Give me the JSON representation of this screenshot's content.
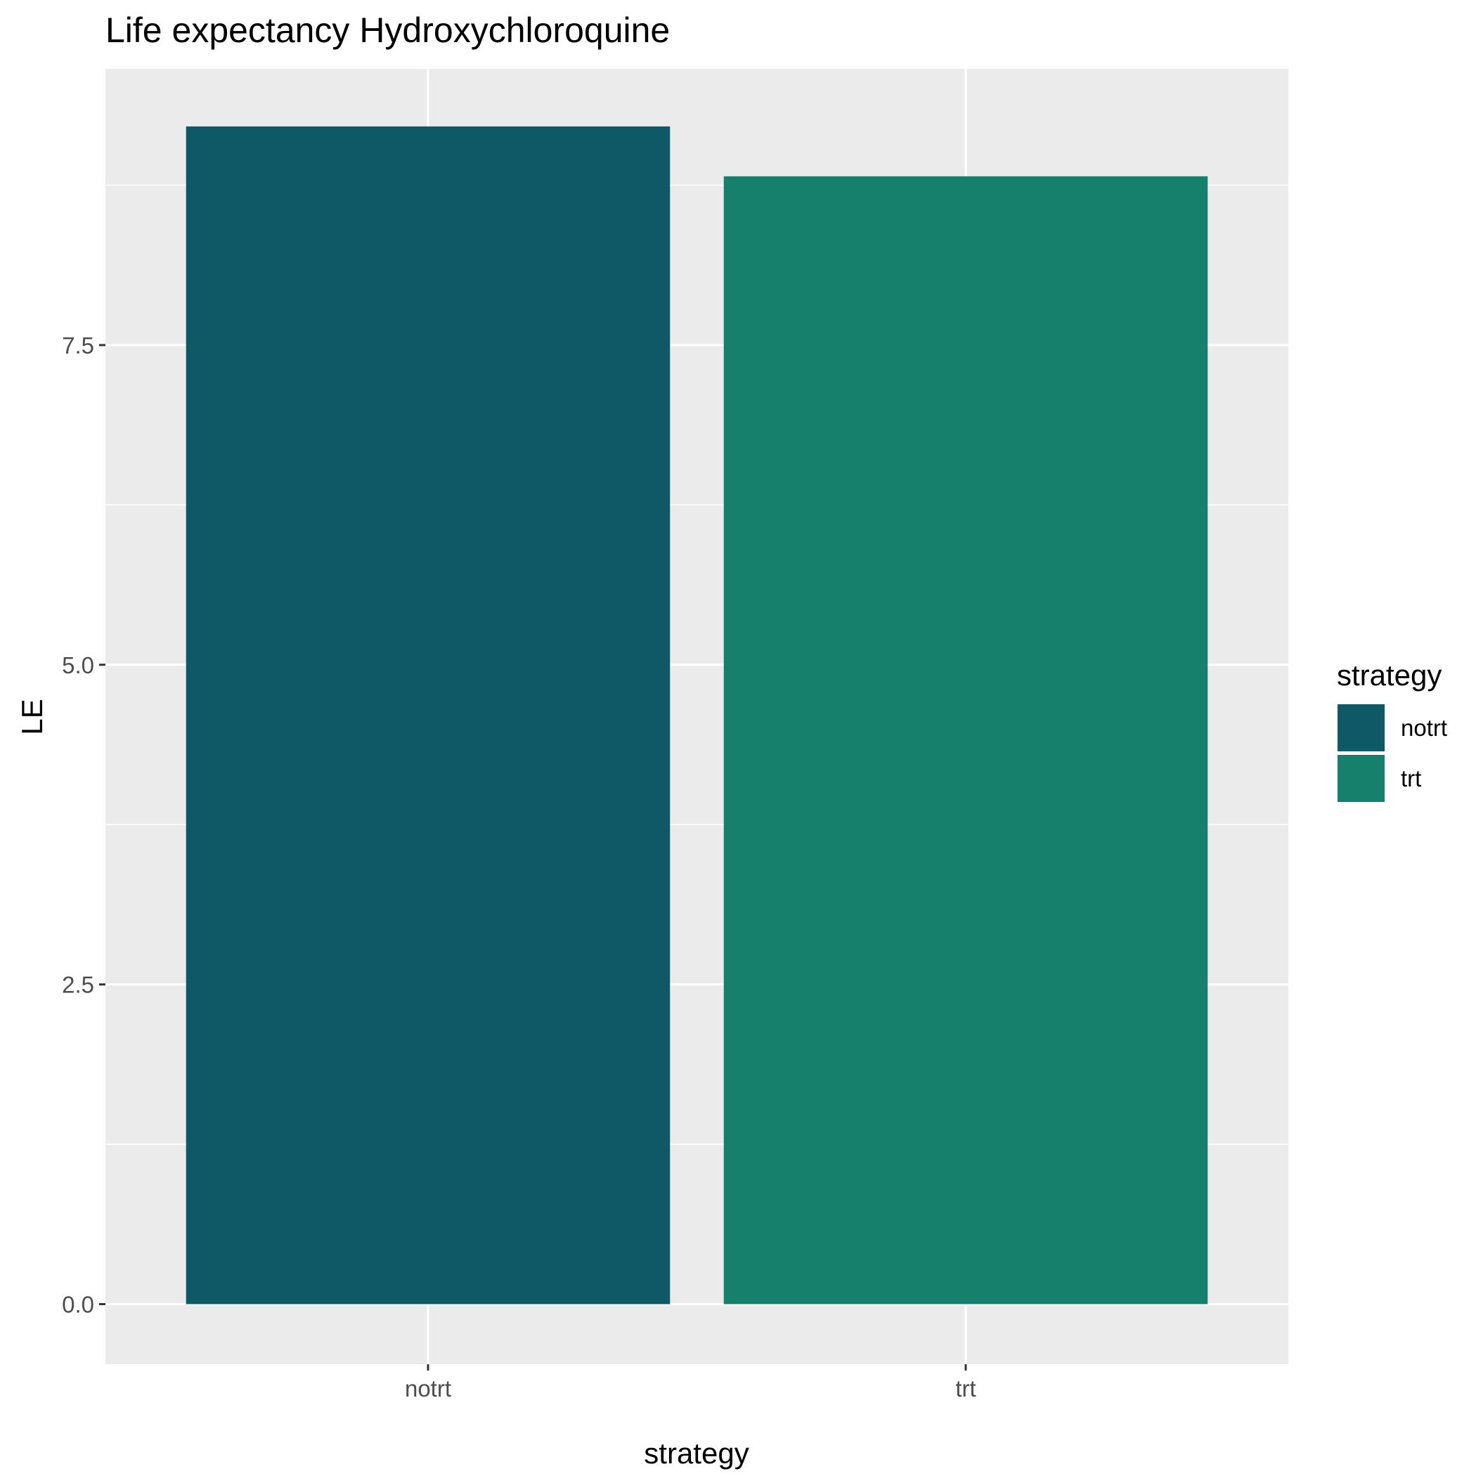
{
  "chart_data": {
    "type": "bar",
    "title": "Life expectancy Hydroxychloroquine",
    "xlabel": "strategy",
    "ylabel": "LE",
    "categories": [
      "notrt",
      "trt"
    ],
    "values": [
      9.21,
      8.82
    ],
    "colors": [
      "#0f5866",
      "#17806d"
    ],
    "ylim": [
      -0.47,
      9.66
    ],
    "yticks": [
      0,
      2.5,
      5,
      7.5
    ],
    "ytick_labels": [
      "0.0",
      "2.5",
      "5.0",
      "7.5"
    ],
    "grid": true,
    "panel_color": "#ebebeb",
    "legend": {
      "title": "strategy",
      "position": "right",
      "items": [
        {
          "label": "notrt",
          "color": "#0f5866"
        },
        {
          "label": "trt",
          "color": "#17806d"
        }
      ]
    }
  }
}
